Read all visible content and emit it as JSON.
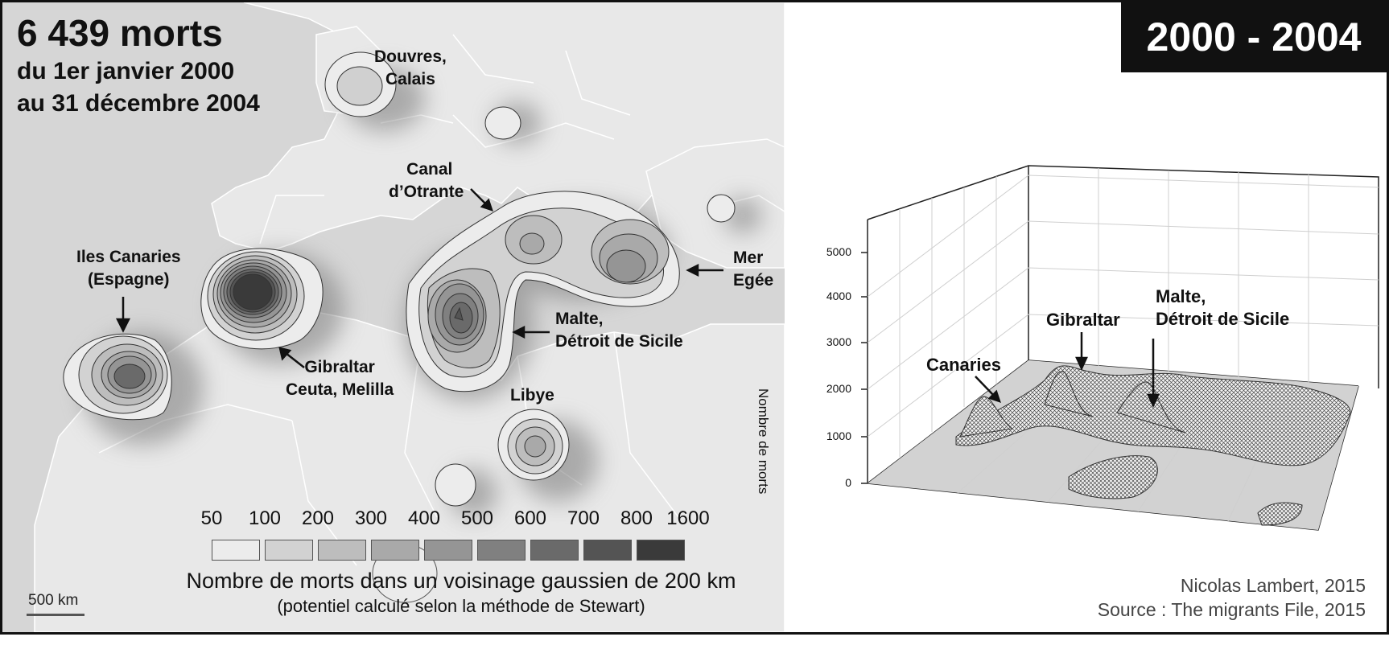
{
  "title": {
    "main": "6 439 morts",
    "sub1": "du 1er janvier 2000",
    "sub2": "au 31 décembre 2004"
  },
  "period": "2000 - 2004",
  "map_labels": {
    "douvres": [
      "Douvres,",
      "Calais"
    ],
    "otrante": [
      "Canal",
      "d’Otrante"
    ],
    "canaries": [
      "Iles Canaries",
      "(Espagne)"
    ],
    "gibraltar": [
      "Gibraltar",
      "Ceuta, Melilla"
    ],
    "malte": [
      "Malte,",
      "Détroit de Sicile"
    ],
    "mer_egee": [
      "Mer",
      "Egée"
    ],
    "libye": [
      "Libye"
    ]
  },
  "legend": {
    "values": [
      "50",
      "100",
      "200",
      "300",
      "400",
      "500",
      "600",
      "700",
      "800",
      "1600"
    ],
    "colors": [
      "#ececec",
      "#d2d2d2",
      "#bdbdbd",
      "#a9a9a9",
      "#959595",
      "#808080",
      "#6a6a6a",
      "#545454",
      "#3a3a3a"
    ],
    "title": "Nombre de morts dans un voisinage gaussien de 200 km",
    "subtitle": "(potentiel calculé selon la méthode de Stewart)"
  },
  "scale_label": "500 km",
  "plot3d": {
    "y_axis_label": "Nombre de morts",
    "y_ticks": [
      "0",
      "1000",
      "2000",
      "3000",
      "4000",
      "5000"
    ],
    "peak_labels": {
      "canaries": "Canaries",
      "gibraltar": "Gibraltar",
      "malte": [
        "Malte,",
        "Détroit de Sicile"
      ]
    }
  },
  "credits": {
    "author": "Nicolas Lambert, 2015",
    "source": "Source : The migrants File, 2015"
  },
  "colors": {
    "sea": "#d6d6d6",
    "land": "#e9e9e9",
    "frame": "#111111"
  }
}
